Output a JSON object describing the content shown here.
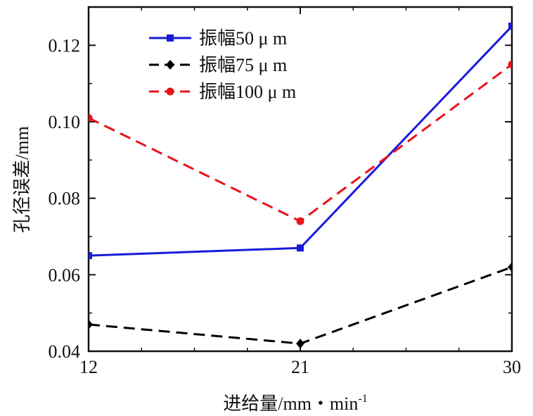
{
  "chart_data": {
    "type": "line",
    "xlabel": "进给量/mm・min",
    "xlabel_superscript": "-1",
    "ylabel": "孔径误差/mm",
    "categories": [
      "12",
      "21",
      "30"
    ],
    "xlim": [
      12,
      30
    ],
    "ylim": [
      0.04,
      0.13
    ],
    "yticks": [
      "0.04",
      "0.06",
      "0.08",
      "0.10",
      "0.12"
    ],
    "grid": false,
    "legend_position": "top-left",
    "series": [
      {
        "name": "振幅50 μ m",
        "values": [
          0.065,
          0.067,
          0.125
        ],
        "color": "#1a1adb",
        "line_style": "solid",
        "marker": "square"
      },
      {
        "name": "振幅75 μ m",
        "values": [
          0.047,
          0.042,
          0.062
        ],
        "color": "#000000",
        "line_style": "dashed",
        "marker": "diamond"
      },
      {
        "name": "振幅100 μ m",
        "values": [
          0.101,
          0.074,
          0.115
        ],
        "color": "#e8141b",
        "line_style": "dashed",
        "marker": "circle"
      }
    ]
  }
}
